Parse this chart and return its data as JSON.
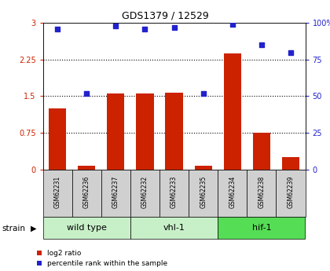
{
  "title": "GDS1379 / 12529",
  "samples": [
    "GSM62231",
    "GSM62236",
    "GSM62237",
    "GSM62232",
    "GSM62233",
    "GSM62235",
    "GSM62234",
    "GSM62238",
    "GSM62239"
  ],
  "log2_ratio": [
    1.25,
    0.07,
    1.55,
    1.55,
    1.58,
    0.07,
    2.38,
    0.75,
    0.25
  ],
  "percentile_rank": [
    96,
    52,
    98,
    96,
    97,
    52,
    99,
    85,
    80
  ],
  "groups": [
    {
      "label": "wild type",
      "start": 0,
      "end": 3,
      "color": "#c8f0c8"
    },
    {
      "label": "vhl-1",
      "start": 3,
      "end": 6,
      "color": "#c8f0c8"
    },
    {
      "label": "hif-1",
      "start": 6,
      "end": 9,
      "color": "#55dd55"
    }
  ],
  "bar_color": "#cc2200",
  "dot_color": "#2222cc",
  "ylim_left": [
    0,
    3
  ],
  "ylim_right": [
    0,
    100
  ],
  "yticks_left": [
    0,
    0.75,
    1.5,
    2.25,
    3
  ],
  "ytick_labels_left": [
    "0",
    "0.75",
    "1.5",
    "2.25",
    "3"
  ],
  "yticks_right": [
    0,
    25,
    50,
    75,
    100
  ],
  "ytick_labels_right": [
    "0",
    "25",
    "50",
    "75",
    "100%"
  ],
  "hlines": [
    0.75,
    1.5,
    2.25
  ],
  "legend_log2": "log2 ratio",
  "legend_pct": "percentile rank within the sample",
  "background_color": "#ffffff",
  "label_area_color": "#d0d0d0",
  "title_fontsize": 9,
  "tick_fontsize": 7,
  "sample_fontsize": 5.5,
  "group_fontsize": 8
}
